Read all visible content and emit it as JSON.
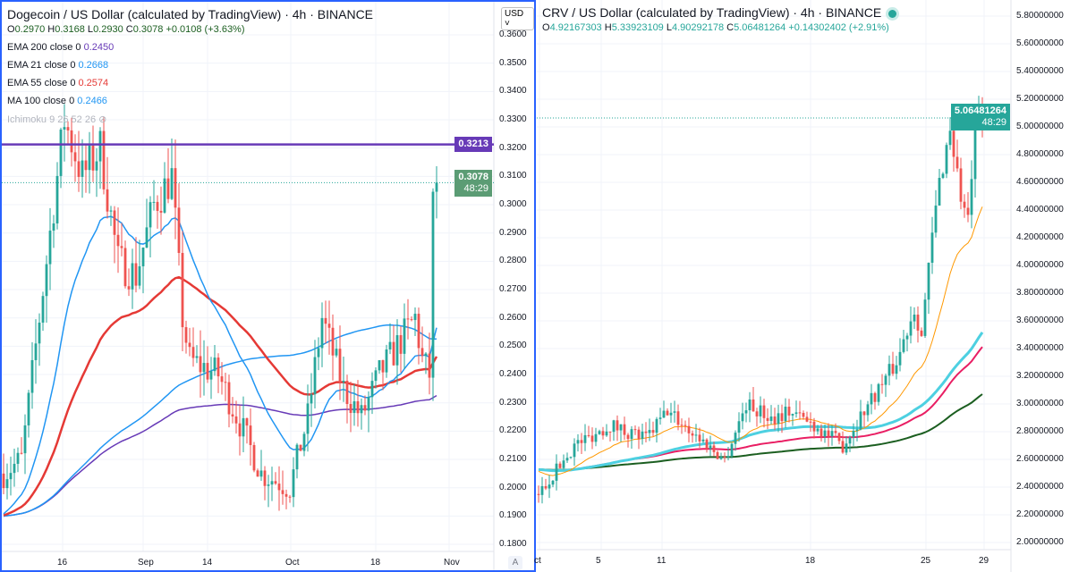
{
  "left": {
    "title": "Dogecoin / US Dollar (calculated by TradingView) · 4h · BINANCE",
    "ohlc": {
      "o": "0.2970",
      "h": "0.3168",
      "l": "0.2930",
      "c": "0.3078",
      "chg": "+0.0108 (+3.63%)"
    },
    "indicators": [
      {
        "label": "EMA 200 close 0",
        "value": "0.2450",
        "color": "#673ab7"
      },
      {
        "label": "EMA 21 close 0",
        "value": "0.2668",
        "color": "#2196f3"
      },
      {
        "label": "EMA 55 close 0",
        "value": "0.2574",
        "color": "#e53935"
      },
      {
        "label": "MA 100 close 0",
        "value": "0.2466",
        "color": "#2196f3"
      }
    ],
    "ichimoku": "Ichimoku 9 26 52 26",
    "currency": "USD",
    "price_ticks": [
      "0.3600",
      "0.3500",
      "0.3400",
      "0.3300",
      "0.3200",
      "0.3100",
      "0.3000",
      "0.2900",
      "0.2800",
      "0.2700",
      "0.2600",
      "0.2500",
      "0.2400",
      "0.2300",
      "0.2200",
      "0.2100",
      "0.2000",
      "0.1900",
      "0.1800"
    ],
    "hline_tag": "0.3213",
    "last_price": "0.3078",
    "countdown": "48:29",
    "time_labels": [
      "16",
      "Sep",
      "14",
      "Oct",
      "18",
      "Nov"
    ],
    "auto_label": "A"
  },
  "right": {
    "title": "CRV / US Dollar (calculated by TradingView) · 4h · BINANCE",
    "ohlc": {
      "o": "4.92167303",
      "h": "5.33923109",
      "l": "4.90292178",
      "c": "5.06481264",
      "chg": "+0.14302402 (+2.91%)"
    },
    "price_ticks": [
      "5.80000000",
      "5.60000000",
      "5.40000000",
      "5.20000000",
      "5.00000000",
      "4.80000000",
      "4.60000000",
      "4.40000000",
      "4.20000000",
      "4.00000000",
      "3.80000000",
      "3.60000000",
      "3.40000000",
      "3.20000000",
      "3.00000000",
      "2.80000000",
      "2.60000000",
      "2.40000000",
      "2.20000000",
      "2.00000000"
    ],
    "last_price": "5.06481264",
    "countdown": "48:29",
    "time_labels": [
      "ct",
      "5",
      "11",
      "18",
      "25",
      "29"
    ]
  },
  "colors": {
    "up": "#26a69a",
    "down": "#ef5350",
    "accent": "#2962ff",
    "hline": "#673ab7"
  },
  "chart_data": {
    "type": "candlestick",
    "left_path": [
      [
        0,
        0.205
      ],
      [
        5,
        0.21
      ],
      [
        10,
        0.26
      ],
      [
        17,
        0.33
      ],
      [
        22,
        0.31
      ],
      [
        27,
        0.32
      ],
      [
        32,
        0.28
      ],
      [
        37,
        0.275
      ],
      [
        42,
        0.3
      ],
      [
        47,
        0.31
      ],
      [
        50,
        0.26
      ],
      [
        52,
        0.245
      ],
      [
        60,
        0.24
      ],
      [
        67,
        0.22
      ],
      [
        72,
        0.205
      ],
      [
        80,
        0.2
      ],
      [
        85,
        0.225
      ],
      [
        89,
        0.26
      ],
      [
        95,
        0.235
      ],
      [
        100,
        0.225
      ],
      [
        105,
        0.24
      ],
      [
        110,
        0.25
      ],
      [
        115,
        0.26
      ],
      [
        117,
        0.245
      ],
      [
        119,
        0.24
      ],
      [
        120,
        0.3
      ],
      [
        121,
        0.3078
      ]
    ],
    "right_path": [
      [
        0,
        2.35
      ],
      [
        10,
        2.7
      ],
      [
        20,
        2.85
      ],
      [
        30,
        2.75
      ],
      [
        36,
        2.95
      ],
      [
        45,
        2.75
      ],
      [
        52,
        2.6
      ],
      [
        58,
        3.0
      ],
      [
        65,
        2.9
      ],
      [
        70,
        2.95
      ],
      [
        77,
        2.85
      ],
      [
        85,
        2.7
      ],
      [
        92,
        3.0
      ],
      [
        100,
        3.3
      ],
      [
        105,
        3.7
      ],
      [
        107,
        3.5
      ],
      [
        110,
        4.2
      ],
      [
        112,
        4.6
      ],
      [
        115,
        5.0
      ],
      [
        118,
        4.5
      ],
      [
        120,
        4.3
      ],
      [
        122,
        5.0
      ],
      [
        124,
        5.06
      ]
    ]
  }
}
